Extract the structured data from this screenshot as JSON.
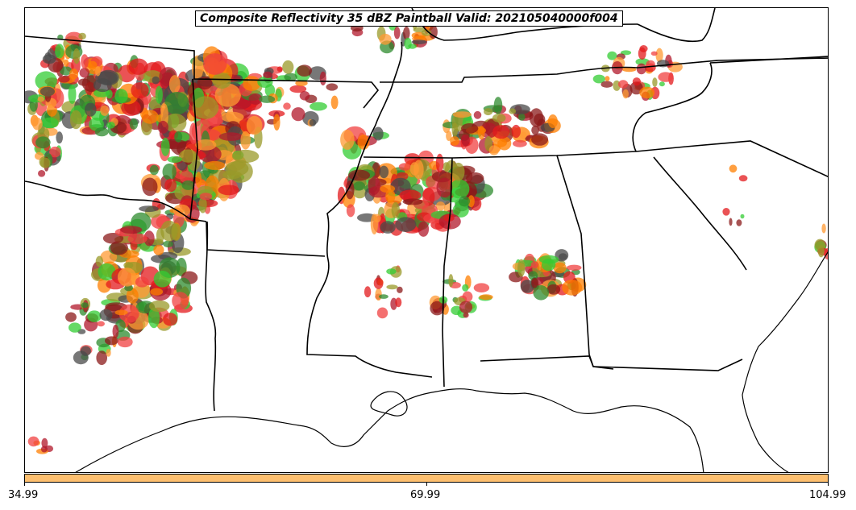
{
  "title": "Composite Reflectivity 35 dBZ Paintball Valid: 202105040000f004",
  "colorbar": {
    "color": "#fdbf6f",
    "ticks": [
      "34.99",
      "69.99",
      "104.99"
    ]
  },
  "member_colors": [
    "#e31a1c",
    "#ff7f00",
    "#33cc33",
    "#b2182b",
    "#2e8b2e",
    "#9a9a2a",
    "#ff9933",
    "#f04040",
    "#8b1a1a",
    "#4a4a4a"
  ],
  "map": {
    "region": "Southeastern United States",
    "features": [
      "state-borders",
      "coastline",
      "reflectivity-paintball-blobs"
    ]
  }
}
